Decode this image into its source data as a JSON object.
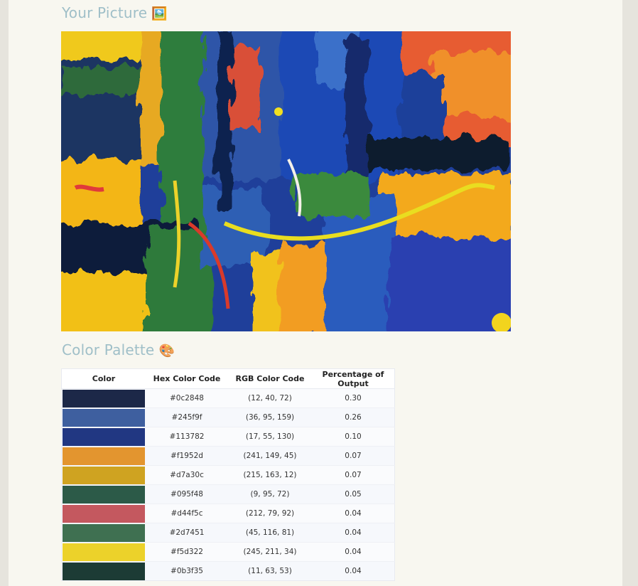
{
  "sections": {
    "picture_title": "Your Picture",
    "picture_emoji": "🖼️",
    "palette_title": "Color Palette",
    "palette_emoji": "🎨"
  },
  "image": {
    "subject": "abstract painting"
  },
  "table": {
    "headers": [
      "Color",
      "Hex Color Code",
      "RGB Color Code",
      "Percentage of Output"
    ],
    "rows": [
      {
        "color": "#1c2848",
        "hex": "#0c2848",
        "rgb": "(12, 40, 72)",
        "pct": "0.30"
      },
      {
        "color": "#3e5f9f",
        "hex": "#245f9f",
        "rgb": "(36, 95, 159)",
        "pct": "0.26"
      },
      {
        "color": "#213782",
        "hex": "#113782",
        "rgb": "(17, 55, 130)",
        "pct": "0.10"
      },
      {
        "color": "#e3952f",
        "hex": "#f1952d",
        "rgb": "(241, 149, 45)",
        "pct": "0.07"
      },
      {
        "color": "#cfa321",
        "hex": "#d7a30c",
        "rgb": "(215, 163, 12)",
        "pct": "0.07"
      },
      {
        "color": "#2c5a48",
        "hex": "#095f48",
        "rgb": "(9, 95, 72)",
        "pct": "0.05"
      },
      {
        "color": "#c4585f",
        "hex": "#d44f5c",
        "rgb": "(212, 79, 92)",
        "pct": "0.04"
      },
      {
        "color": "#3f7051",
        "hex": "#2d7451",
        "rgb": "(45, 116, 81)",
        "pct": "0.04"
      },
      {
        "color": "#ecd22a",
        "hex": "#f5d322",
        "rgb": "(245, 211, 34)",
        "pct": "0.04"
      },
      {
        "color": "#1c3b35",
        "hex": "#0b3f35",
        "rgb": "(11, 63, 53)",
        "pct": "0.04"
      }
    ]
  }
}
